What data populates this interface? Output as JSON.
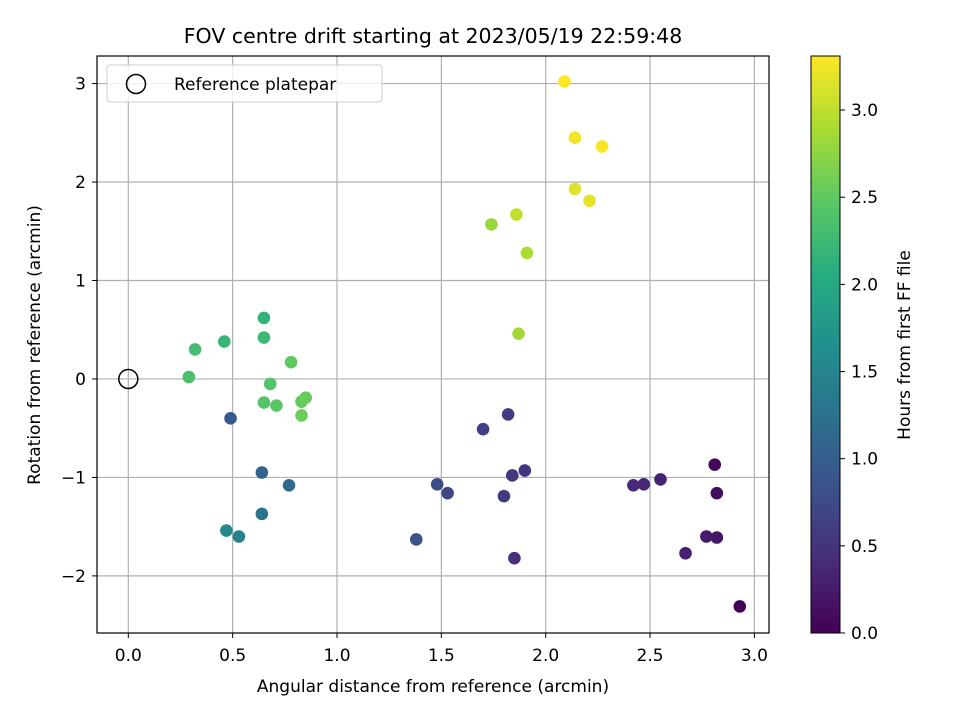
{
  "chart_data": {
    "type": "scatter",
    "title": "FOV centre drift starting at 2023/05/19 22:59:48",
    "xlabel": "Angular distance from reference (arcmin)",
    "ylabel": "Rotation from reference (arcmin)",
    "xlim": [
      -0.15,
      3.07
    ],
    "ylim": [
      -2.58,
      3.28
    ],
    "x_ticks": [
      0.0,
      0.5,
      1.0,
      1.5,
      2.0,
      2.5,
      3.0
    ],
    "x_tick_labels": [
      "0.0",
      "0.5",
      "1.0",
      "1.5",
      "2.0",
      "2.5",
      "3.0"
    ],
    "y_ticks": [
      -2,
      -1,
      0,
      1,
      2,
      3
    ],
    "y_tick_labels": [
      "−2",
      "−1",
      "0",
      "1",
      "2",
      "3"
    ],
    "grid": true,
    "legend": {
      "position": "top-left",
      "entries": [
        "Reference platepar"
      ]
    },
    "reference_point": {
      "x": 0.0,
      "y": 0.0
    },
    "colorbar": {
      "label": "Hours from first FF file",
      "range": [
        0.0,
        3.31
      ],
      "ticks": [
        0.0,
        0.5,
        1.0,
        1.5,
        2.0,
        2.5,
        3.0
      ],
      "tick_labels": [
        "0.0",
        "0.5",
        "1.0",
        "1.5",
        "2.0",
        "2.5",
        "3.0"
      ],
      "colormap": "viridis"
    },
    "points": [
      {
        "x": 2.93,
        "y": -2.31,
        "c": 0.02
      },
      {
        "x": 2.81,
        "y": -0.87,
        "c": 0.07
      },
      {
        "x": 2.82,
        "y": -1.16,
        "c": 0.12
      },
      {
        "x": 2.82,
        "y": -1.61,
        "c": 0.2
      },
      {
        "x": 2.77,
        "y": -1.6,
        "c": 0.25
      },
      {
        "x": 2.67,
        "y": -1.77,
        "c": 0.3
      },
      {
        "x": 2.55,
        "y": -1.02,
        "c": 0.33
      },
      {
        "x": 2.47,
        "y": -1.07,
        "c": 0.37
      },
      {
        "x": 2.42,
        "y": -1.08,
        "c": 0.4
      },
      {
        "x": 1.85,
        "y": -1.82,
        "c": 0.45
      },
      {
        "x": 1.9,
        "y": -0.93,
        "c": 0.5
      },
      {
        "x": 1.84,
        "y": -0.98,
        "c": 0.53
      },
      {
        "x": 1.8,
        "y": -1.19,
        "c": 0.57
      },
      {
        "x": 1.82,
        "y": -0.36,
        "c": 0.6
      },
      {
        "x": 1.7,
        "y": -0.51,
        "c": 0.65
      },
      {
        "x": 1.53,
        "y": -1.16,
        "c": 0.7
      },
      {
        "x": 1.48,
        "y": -1.07,
        "c": 0.75
      },
      {
        "x": 1.38,
        "y": -1.63,
        "c": 0.85
      },
      {
        "x": 0.49,
        "y": -0.4,
        "c": 0.95
      },
      {
        "x": 0.64,
        "y": -0.95,
        "c": 1.05
      },
      {
        "x": 0.77,
        "y": -1.08,
        "c": 1.15
      },
      {
        "x": 0.64,
        "y": -1.37,
        "c": 1.3
      },
      {
        "x": 0.53,
        "y": -1.6,
        "c": 1.45
      },
      {
        "x": 0.47,
        "y": -1.54,
        "c": 1.55
      },
      {
        "x": 0.65,
        "y": 0.62,
        "c": 2.15
      },
      {
        "x": 0.46,
        "y": 0.38,
        "c": 2.2
      },
      {
        "x": 0.65,
        "y": 0.42,
        "c": 2.25
      },
      {
        "x": 0.32,
        "y": 0.3,
        "c": 2.3
      },
      {
        "x": 0.29,
        "y": 0.02,
        "c": 2.35
      },
      {
        "x": 0.68,
        "y": -0.05,
        "c": 2.4
      },
      {
        "x": 0.65,
        "y": -0.24,
        "c": 2.42
      },
      {
        "x": 0.71,
        "y": -0.27,
        "c": 2.45
      },
      {
        "x": 0.78,
        "y": 0.17,
        "c": 2.5
      },
      {
        "x": 0.83,
        "y": -0.23,
        "c": 2.52
      },
      {
        "x": 0.85,
        "y": -0.19,
        "c": 2.55
      },
      {
        "x": 0.83,
        "y": -0.37,
        "c": 2.57
      },
      {
        "x": 1.74,
        "y": 1.57,
        "c": 2.8
      },
      {
        "x": 1.87,
        "y": 0.46,
        "c": 2.85
      },
      {
        "x": 1.91,
        "y": 1.28,
        "c": 2.9
      },
      {
        "x": 1.86,
        "y": 1.67,
        "c": 3.0
      },
      {
        "x": 2.14,
        "y": 1.93,
        "c": 3.15
      },
      {
        "x": 2.21,
        "y": 1.81,
        "c": 3.2
      },
      {
        "x": 2.14,
        "y": 2.45,
        "c": 3.25
      },
      {
        "x": 2.27,
        "y": 2.36,
        "c": 3.28
      },
      {
        "x": 2.09,
        "y": 3.02,
        "c": 3.31
      }
    ]
  }
}
